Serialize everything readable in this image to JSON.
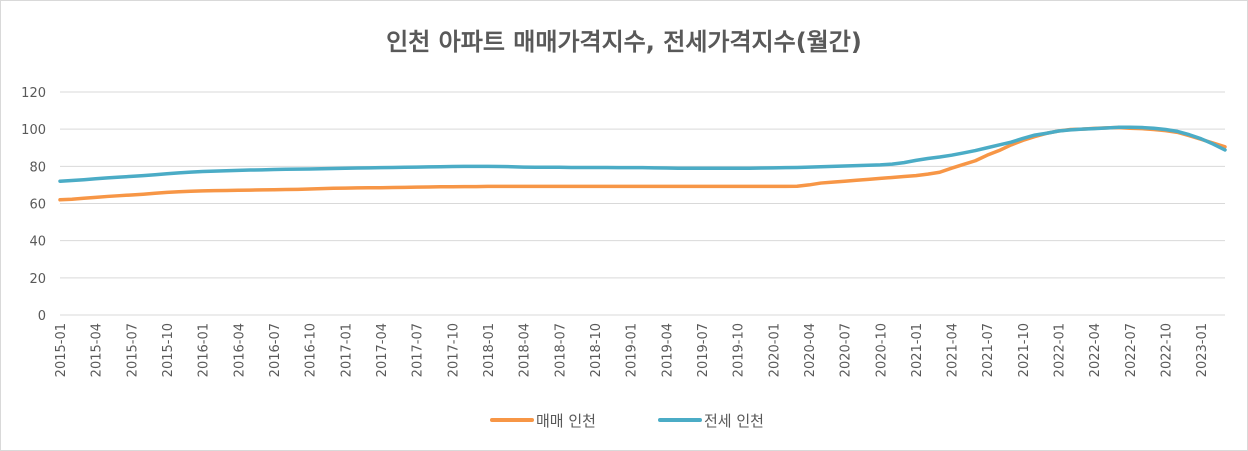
{
  "chart_data": {
    "type": "line",
    "title": "인천 아파트 매매가격지수, 전세가격지수(월간)",
    "xlabel": "",
    "ylabel": "",
    "ylim": [
      0,
      120
    ],
    "yticks": [
      0,
      20,
      40,
      60,
      80,
      100,
      120
    ],
    "grid": true,
    "legend_position": "bottom",
    "x_tick_labels": [
      "2015-01",
      "2015-04",
      "2015-07",
      "2015-10",
      "2016-01",
      "2016-04",
      "2016-07",
      "2016-10",
      "2017-01",
      "2017-04",
      "2017-07",
      "2017-10",
      "2018-01",
      "2018-04",
      "2018-07",
      "2018-10",
      "2019-01",
      "2019-04",
      "2019-07",
      "2019-10",
      "2020-01",
      "2020-04",
      "2020-07",
      "2020-10",
      "2021-01",
      "2021-04",
      "2021-07",
      "2021-10",
      "2022-01",
      "2022-04",
      "2022-07",
      "2022-10",
      "2023-01"
    ],
    "series": [
      {
        "name": "매매 인천",
        "color": "#F79646",
        "values": [
          62.0,
          62.3,
          62.8,
          63.3,
          63.8,
          64.2,
          64.6,
          65.0,
          65.5,
          66.0,
          66.3,
          66.6,
          66.8,
          66.9,
          67.0,
          67.1,
          67.2,
          67.3,
          67.4,
          67.5,
          67.6,
          67.8,
          68.0,
          68.2,
          68.3,
          68.4,
          68.5,
          68.5,
          68.6,
          68.7,
          68.8,
          68.9,
          69.0,
          69.0,
          69.1,
          69.1,
          69.2,
          69.2,
          69.2,
          69.2,
          69.2,
          69.2,
          69.2,
          69.2,
          69.2,
          69.2,
          69.2,
          69.2,
          69.2,
          69.2,
          69.2,
          69.2,
          69.2,
          69.2,
          69.2,
          69.2,
          69.2,
          69.2,
          69.2,
          69.2,
          69.2,
          69.2,
          69.3,
          70.0,
          71.0,
          71.5,
          72.0,
          72.5,
          73.0,
          73.5,
          74.0,
          74.5,
          75.0,
          75.8,
          76.8,
          79.0,
          81.0,
          83.0,
          86.0,
          88.5,
          91.5,
          94.0,
          96.0,
          97.8,
          99.0,
          99.8,
          100.0,
          100.4,
          100.7,
          100.9,
          100.5,
          100.3,
          99.8,
          99.2,
          98.3,
          96.5,
          94.5,
          92.5,
          90.5
        ]
      },
      {
        "name": "전세 인천",
        "color": "#4BACC6",
        "values": [
          72.0,
          72.4,
          72.8,
          73.3,
          73.8,
          74.2,
          74.6,
          75.0,
          75.5,
          76.0,
          76.5,
          76.9,
          77.2,
          77.4,
          77.6,
          77.8,
          78.0,
          78.1,
          78.3,
          78.4,
          78.5,
          78.6,
          78.7,
          78.8,
          79.0,
          79.1,
          79.2,
          79.3,
          79.4,
          79.5,
          79.6,
          79.7,
          79.8,
          79.9,
          80.0,
          80.0,
          80.0,
          79.9,
          79.8,
          79.6,
          79.5,
          79.5,
          79.5,
          79.4,
          79.4,
          79.4,
          79.4,
          79.3,
          79.3,
          79.3,
          79.2,
          79.1,
          79.0,
          79.0,
          79.0,
          79.0,
          79.0,
          79.0,
          79.0,
          79.1,
          79.2,
          79.3,
          79.4,
          79.6,
          79.8,
          80.0,
          80.2,
          80.4,
          80.6,
          80.8,
          81.2,
          82.0,
          83.2,
          84.2,
          85.0,
          86.0,
          87.2,
          88.5,
          90.0,
          91.5,
          93.0,
          95.0,
          96.8,
          97.8,
          99.0,
          99.6,
          100.0,
          100.3,
          100.6,
          101.0,
          101.0,
          100.9,
          100.5,
          99.8,
          98.8,
          97.0,
          94.8,
          92.0,
          88.8
        ]
      }
    ]
  }
}
